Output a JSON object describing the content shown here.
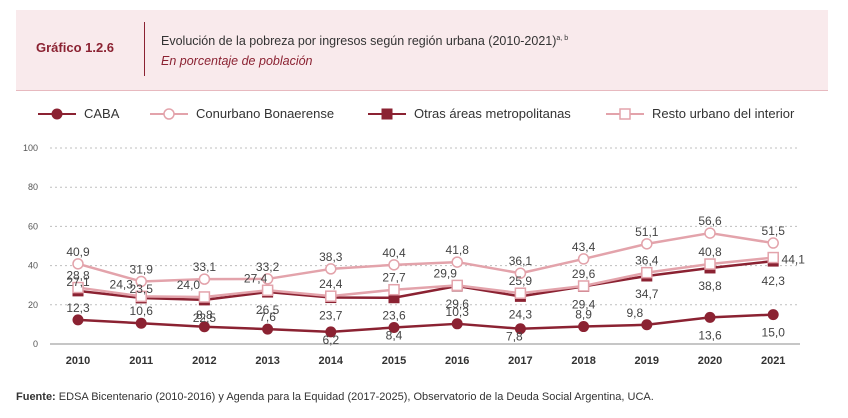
{
  "header": {
    "label": "Gráfico 1.2.6",
    "title": "Evolución de la pobreza por ingresos según región urbana (2010-2021)",
    "title_sup": "a, b",
    "subtitle": "En porcentaje de población"
  },
  "legend": {
    "items": [
      {
        "label": "CABA",
        "marker": "circle",
        "filled": true,
        "color": "#8b2232"
      },
      {
        "label": "Conurbano Bonaerense",
        "marker": "circle",
        "filled": false,
        "color": "#e3a3ab"
      },
      {
        "label": "Otras áreas metropolitanas",
        "marker": "square",
        "filled": true,
        "color": "#8b2232"
      },
      {
        "label": "Resto urbano del interior",
        "marker": "square",
        "filled": false,
        "color": "#e3a3ab"
      }
    ]
  },
  "source": {
    "label": "Fuente:",
    "text": "EDSA Bicentenario (2010-2016) y Agenda para la Equidad (2017-2025), Observatorio de la Deuda Social Argentina, UCA."
  },
  "chart_data": {
    "type": "line",
    "title": "Evolución de la pobreza por ingresos según región urbana (2010-2021)",
    "xlabel": "",
    "ylabel": "En porcentaje de población",
    "ylim": [
      0,
      100
    ],
    "yticks": [
      "0",
      "20",
      "40",
      "60",
      "80",
      "100"
    ],
    "grid": true,
    "categories": [
      "2010",
      "2011",
      "2012",
      "2013",
      "2014",
      "2015",
      "2016",
      "2017",
      "2018",
      "2019",
      "2020",
      "2021"
    ],
    "series": [
      {
        "name": "CABA",
        "marker": "circle",
        "filled": true,
        "color": "#8b2232",
        "line_color": "#8b2232",
        "values": [
          12.3,
          10.6,
          8.8,
          7.6,
          6.2,
          8.4,
          10.3,
          7.8,
          8.9,
          9.8,
          13.6,
          15.0
        ],
        "labels": [
          "12,3",
          "10,6",
          "8,8",
          "7,6",
          "6,2",
          "8,4",
          "10,3",
          "7,8",
          "8,9",
          "9,8",
          "13,6",
          "15,0"
        ]
      },
      {
        "name": "Conurbano Bonaerense",
        "marker": "circle",
        "filled": false,
        "color": "#e3a3ab",
        "line_color": "#e3a3ab",
        "values": [
          40.9,
          31.9,
          33.1,
          33.2,
          38.3,
          40.4,
          41.8,
          36.1,
          43.4,
          51.1,
          56.6,
          51.5
        ],
        "labels": [
          "40,9",
          "31,9",
          "33,1",
          "33,2",
          "38,3",
          "40,4",
          "41,8",
          "36,1",
          "43,4",
          "51,1",
          "56,6",
          "51,5"
        ]
      },
      {
        "name": "Otras áreas metropolitanas",
        "marker": "square",
        "filled": true,
        "color": "#8b2232",
        "line_color": "#8b2232",
        "values": [
          27.1,
          23.5,
          22.5,
          26.5,
          23.7,
          23.6,
          29.6,
          24.3,
          29.4,
          34.7,
          38.8,
          42.3
        ],
        "labels": [
          "27,1",
          "23,5",
          "22,5",
          "26,5",
          "23,7",
          "23,6",
          "29,6",
          "24,3",
          "29,4",
          "34,7",
          "38,8",
          "42,3"
        ]
      },
      {
        "name": "Resto urbano del interior",
        "marker": "square",
        "filled": false,
        "color": "#e3a3ab",
        "line_color": "#e3a3ab",
        "values": [
          28.8,
          24.3,
          24.0,
          27.4,
          24.4,
          27.7,
          29.9,
          25.9,
          29.6,
          36.4,
          40.8,
          44.1
        ],
        "labels": [
          "28,8",
          "24,3",
          "24,0",
          "27,4",
          "24,4",
          "27,7",
          "29,9",
          "25,9",
          "29,6",
          "36,4",
          "40,8",
          "44,1"
        ]
      }
    ]
  }
}
